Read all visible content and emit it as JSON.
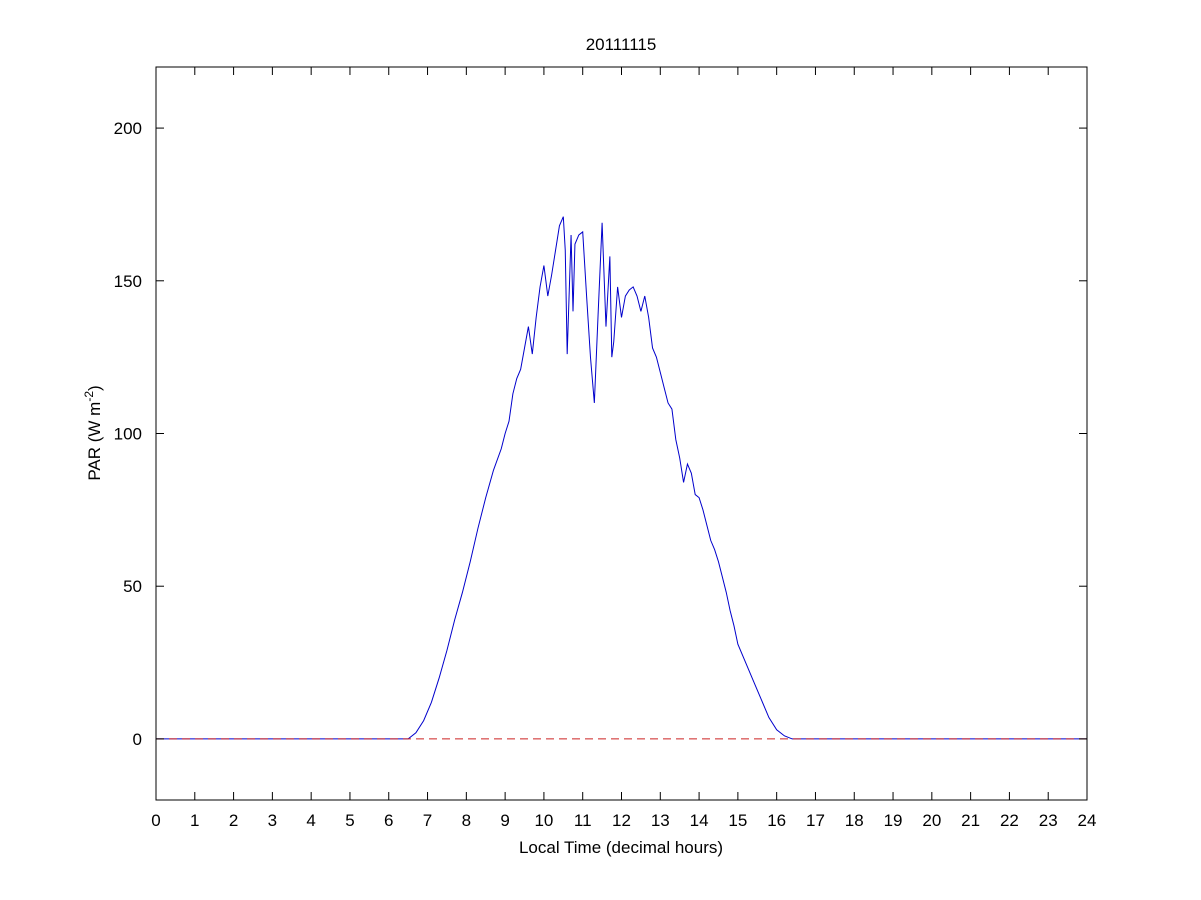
{
  "chart_data": {
    "type": "line",
    "title": "20111115",
    "xlabel": "Local Time (decimal hours)",
    "ylabel_prefix": "PAR (W m",
    "ylabel_exponent": "-2",
    "ylabel_suffix": ")",
    "xlim": [
      0,
      24
    ],
    "ylim": [
      -20,
      220
    ],
    "xticks": [
      0,
      1,
      2,
      3,
      4,
      5,
      6,
      7,
      8,
      9,
      10,
      11,
      12,
      13,
      14,
      15,
      16,
      17,
      18,
      19,
      20,
      21,
      22,
      23,
      24
    ],
    "yticks": [
      0,
      50,
      100,
      150,
      200
    ],
    "grid": false,
    "colors": {
      "series": "#0000cc",
      "baseline": "#cc2222",
      "axes": "#000000"
    },
    "series": [
      {
        "style": "solid",
        "x": [
          0,
          6.5,
          6.7,
          6.9,
          7.1,
          7.3,
          7.5,
          7.7,
          7.9,
          8.1,
          8.3,
          8.5,
          8.7,
          8.9,
          9.0,
          9.1,
          9.2,
          9.3,
          9.4,
          9.5,
          9.6,
          9.7,
          9.8,
          9.9,
          10.0,
          10.1,
          10.2,
          10.3,
          10.4,
          10.5,
          10.55,
          10.6,
          10.7,
          10.75,
          10.8,
          10.9,
          11.0,
          11.1,
          11.2,
          11.3,
          11.4,
          11.5,
          11.6,
          11.7,
          11.75,
          11.8,
          11.9,
          12.0,
          12.1,
          12.2,
          12.3,
          12.4,
          12.5,
          12.6,
          12.7,
          12.8,
          12.9,
          13.0,
          13.1,
          13.2,
          13.3,
          13.4,
          13.5,
          13.6,
          13.7,
          13.8,
          13.9,
          14.0,
          14.1,
          14.2,
          14.3,
          14.4,
          14.5,
          14.6,
          14.7,
          14.8,
          14.9,
          15.0,
          15.2,
          15.4,
          15.6,
          15.8,
          16.0,
          16.2,
          16.4,
          16.6,
          16.8,
          17.0,
          17.2,
          17.4,
          24
        ],
        "y": [
          0,
          0,
          2,
          6,
          12,
          20,
          29,
          39,
          48,
          58,
          69,
          79,
          88,
          95,
          100,
          104,
          113,
          118,
          121,
          128,
          135,
          126,
          138,
          148,
          155,
          145,
          152,
          160,
          168,
          171,
          160,
          126,
          165,
          140,
          162,
          165,
          166,
          145,
          125,
          110,
          140,
          169,
          135,
          158,
          125,
          130,
          148,
          138,
          145,
          147,
          148,
          145,
          140,
          145,
          138,
          128,
          125,
          120,
          115,
          110,
          108,
          98,
          92,
          84,
          90,
          87,
          80,
          79,
          75,
          70,
          65,
          62,
          58,
          53,
          48,
          42,
          37,
          31,
          25,
          19,
          13,
          7,
          3,
          1,
          0,
          0,
          0,
          0,
          0,
          0,
          0
        ]
      },
      {
        "style": "dashed",
        "x": [
          0,
          24
        ],
        "y": [
          0,
          0
        ]
      }
    ]
  }
}
